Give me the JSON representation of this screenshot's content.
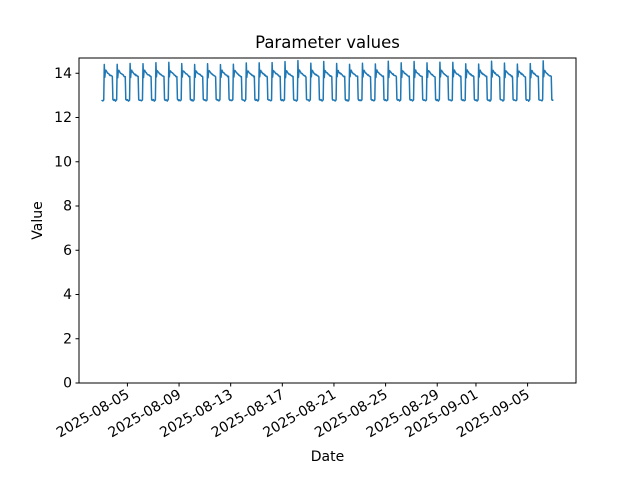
{
  "chart_data": {
    "type": "line",
    "title": "Parameter values",
    "xlabel": "Date",
    "ylabel": "Value",
    "grid": false,
    "legend": "none",
    "line_color": "#1f77b4",
    "line_width": 1.5,
    "axis_color": "#000000",
    "background_color": "#ffffff",
    "ylim": [
      0,
      14.69
    ],
    "y_ticks": [
      0,
      2,
      4,
      6,
      8,
      10,
      12,
      14
    ],
    "x_start_date": "2025-08-03",
    "x_end_date": "2025-09-07",
    "num_days": 35,
    "x_margin_days": 1.75,
    "sampling": "hourly",
    "visible_value_range": [
      12.75,
      14.5
    ],
    "x_ticks": [
      {
        "label": "2025-08-05",
        "day": 2
      },
      {
        "label": "2025-08-09",
        "day": 6
      },
      {
        "label": "2025-08-13",
        "day": 10
      },
      {
        "label": "2025-08-17",
        "day": 14
      },
      {
        "label": "2025-08-21",
        "day": 18
      },
      {
        "label": "2025-08-25",
        "day": 22
      },
      {
        "label": "2025-08-29",
        "day": 26
      },
      {
        "label": "2025-09-01",
        "day": 29
      },
      {
        "label": "2025-09-05",
        "day": 33
      }
    ],
    "daily_pattern_hourly": [
      12.8,
      12.78,
      12.75,
      12.77,
      12.8,
      14.48,
      13.82,
      14.1,
      14.12,
      14.07,
      14.04,
      14.01,
      13.99,
      13.97,
      13.95,
      13.93,
      13.91,
      13.89,
      13.87,
      13.86,
      13.85,
      12.82,
      12.79,
      12.78
    ],
    "jitter": {
      "seed": 42,
      "spike_amp": 0.09,
      "top_amp": 0.025,
      "bottom_amp": 0.015
    }
  }
}
